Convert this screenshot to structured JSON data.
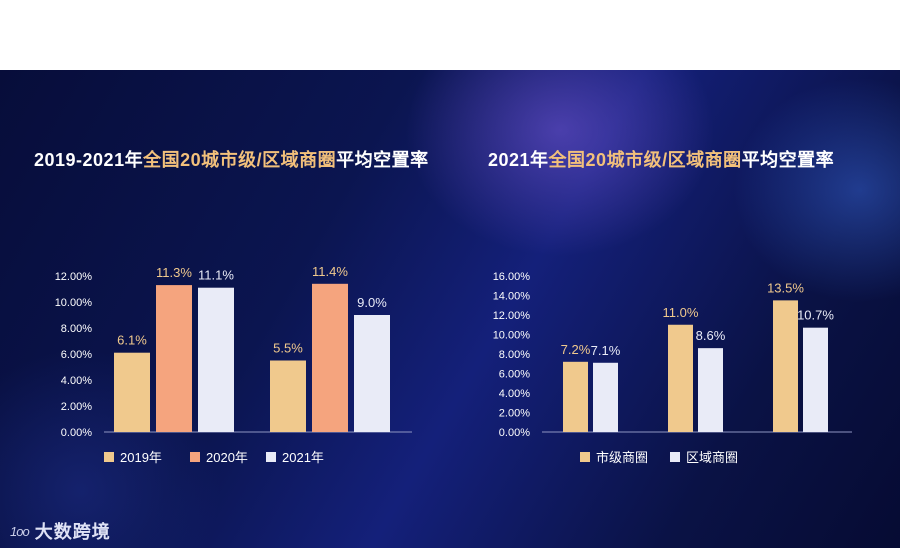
{
  "chart_data": [
    {
      "type": "bar",
      "title": {
        "prefix": "2019-2021年",
        "highlight": "全国20城市级/区域商圈",
        "suffix": "平均空置率"
      },
      "groups": 2,
      "series": [
        {
          "name": "2019年",
          "color": "#f0c98d",
          "values": [
            6.1,
            5.5
          ],
          "labels": [
            "6.1%",
            "5.5%"
          ]
        },
        {
          "name": "2020年",
          "color": "#f5a47e",
          "values": [
            11.3,
            11.4
          ],
          "labels": [
            "11.3%",
            "11.4%"
          ]
        },
        {
          "name": "2021年",
          "color": "#e9ebf7",
          "values": [
            11.1,
            9.0
          ],
          "labels": [
            "11.1%",
            "9.0%"
          ]
        }
      ],
      "ylim": [
        0,
        12
      ],
      "yticks": [
        "0.00%",
        "2.00%",
        "4.00%",
        "6.00%",
        "8.00%",
        "10.00%",
        "12.00%"
      ],
      "grid": false,
      "legend": "bottom",
      "legend_labels": [
        "2019年",
        "2020年",
        "2021年"
      ]
    },
    {
      "type": "bar",
      "title": {
        "prefix": "2021年",
        "highlight": "全国20城市级/区域商圈",
        "suffix": "平均空置率"
      },
      "groups": 3,
      "series": [
        {
          "name": "市级商圈",
          "color": "#f0c98d",
          "values": [
            7.2,
            11.0,
            13.5
          ],
          "labels": [
            "7.2%",
            "11.0%",
            "13.5%"
          ]
        },
        {
          "name": "区域商圈",
          "color": "#e9ebf7",
          "values": [
            7.1,
            8.6,
            10.7
          ],
          "labels": [
            "7.1%",
            "8.6%",
            "10.7%"
          ]
        }
      ],
      "ylim": [
        0,
        16
      ],
      "yticks": [
        "0.00%",
        "2.00%",
        "4.00%",
        "6.00%",
        "8.00%",
        "10.00%",
        "12.00%",
        "14.00%",
        "16.00%"
      ],
      "grid": false,
      "legend": "bottom",
      "legend_labels": [
        "市级商圈",
        "区域商圈"
      ]
    }
  ],
  "branding": {
    "logo_mark": "1oo",
    "logo_text": "大数跨境"
  }
}
